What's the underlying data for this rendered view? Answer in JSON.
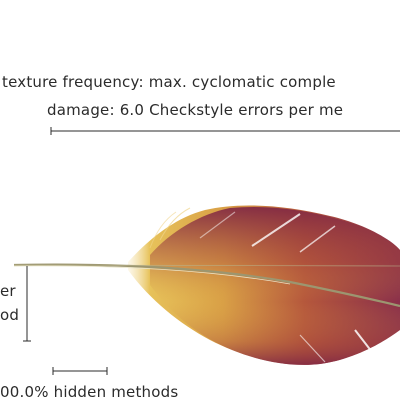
{
  "caption": {
    "line1": "texture frequency: max. cyclomatic comple",
    "line2": "damage: 6.0 Checkstyle errors per me"
  },
  "side_label": {
    "line1": "er",
    "line2": "od"
  },
  "hidden_methods": {
    "label": "00.0% hidden methods"
  },
  "colors": {
    "feather_dark": "#8a2f4a",
    "feather_mid": "#c4683a",
    "feather_light": "#e0b44a",
    "shaft": "#a9a277",
    "ink": "#2b2b2b"
  }
}
